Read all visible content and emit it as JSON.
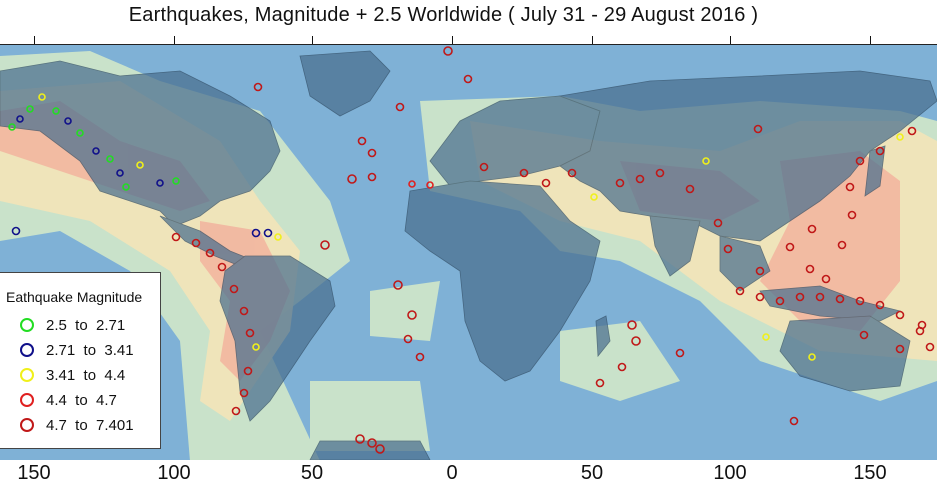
{
  "title": "Earthquakes, Magnitude + 2.5 Worldwide ( July 31 - 29 August 2016 )",
  "x_axis": {
    "tick_labels": [
      "150",
      "100",
      "50",
      "0",
      "50",
      "100",
      "150"
    ]
  },
  "legend": {
    "title": "Eathquake Magnitude",
    "items": [
      {
        "label": "2.5  to  2.71",
        "color": "#22dd22"
      },
      {
        "label": "2.71  to  3.41",
        "color": "#10108a"
      },
      {
        "label": "3.41  to  4.4",
        "color": "#f0f01a"
      },
      {
        "label": "4.4  to  4.7",
        "color": "#e02020"
      },
      {
        "label": "4.7  to  7.401",
        "color": "#c01818"
      }
    ]
  },
  "colors": {
    "ocean": "#7fb1d6",
    "land": "#4a6f8f",
    "density_low": "#d6ebc8",
    "density_mid": "#f3e4b8",
    "density_high": "#f2b6a0"
  }
}
